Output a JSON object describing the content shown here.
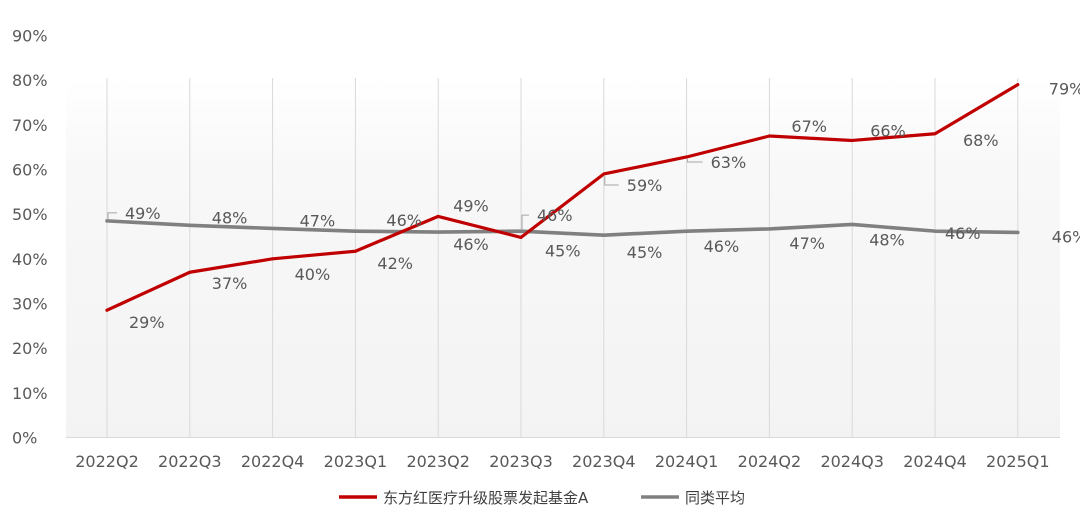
{
  "chart_data": {
    "type": "line",
    "title": "",
    "xlabel": "",
    "ylabel": "",
    "categories": [
      "2022Q2",
      "2022Q3",
      "2022Q4",
      "2023Q1",
      "2023Q2",
      "2023Q3",
      "2023Q4",
      "2024Q1",
      "2024Q2",
      "2024Q3",
      "2024Q4",
      "2025Q1"
    ],
    "ylim": [
      0,
      90
    ],
    "yticks": [
      "0%",
      "10%",
      "20%",
      "30%",
      "40%",
      "50%",
      "60%",
      "70%",
      "80%",
      "90%"
    ],
    "series": [
      {
        "name": "东方红医疗升级股票发起基金A",
        "color": "#c00000",
        "values": [
          28.5,
          37,
          40,
          41.7,
          49.5,
          44.8,
          59,
          62.8,
          67.5,
          66.5,
          68,
          79
        ],
        "labels": [
          "29%",
          "37%",
          "40%",
          "42%",
          "49%",
          "45%",
          "59%",
          "63%",
          "67%",
          "66%",
          "68%",
          "79%"
        ]
      },
      {
        "name": "同类平均",
        "color": "#808080",
        "values": [
          48.5,
          47.5,
          46.8,
          46.2,
          46.0,
          46.2,
          45.3,
          46.2,
          46.7,
          47.7,
          46.2,
          45.9
        ],
        "labels": [
          "49%",
          "48%",
          "47%",
          "46%",
          "46%",
          "46%",
          "45%",
          "46%",
          "47%",
          "48%",
          "46%",
          "46%"
        ]
      }
    ],
    "grid": "vertical",
    "legend_position": "bottom"
  }
}
